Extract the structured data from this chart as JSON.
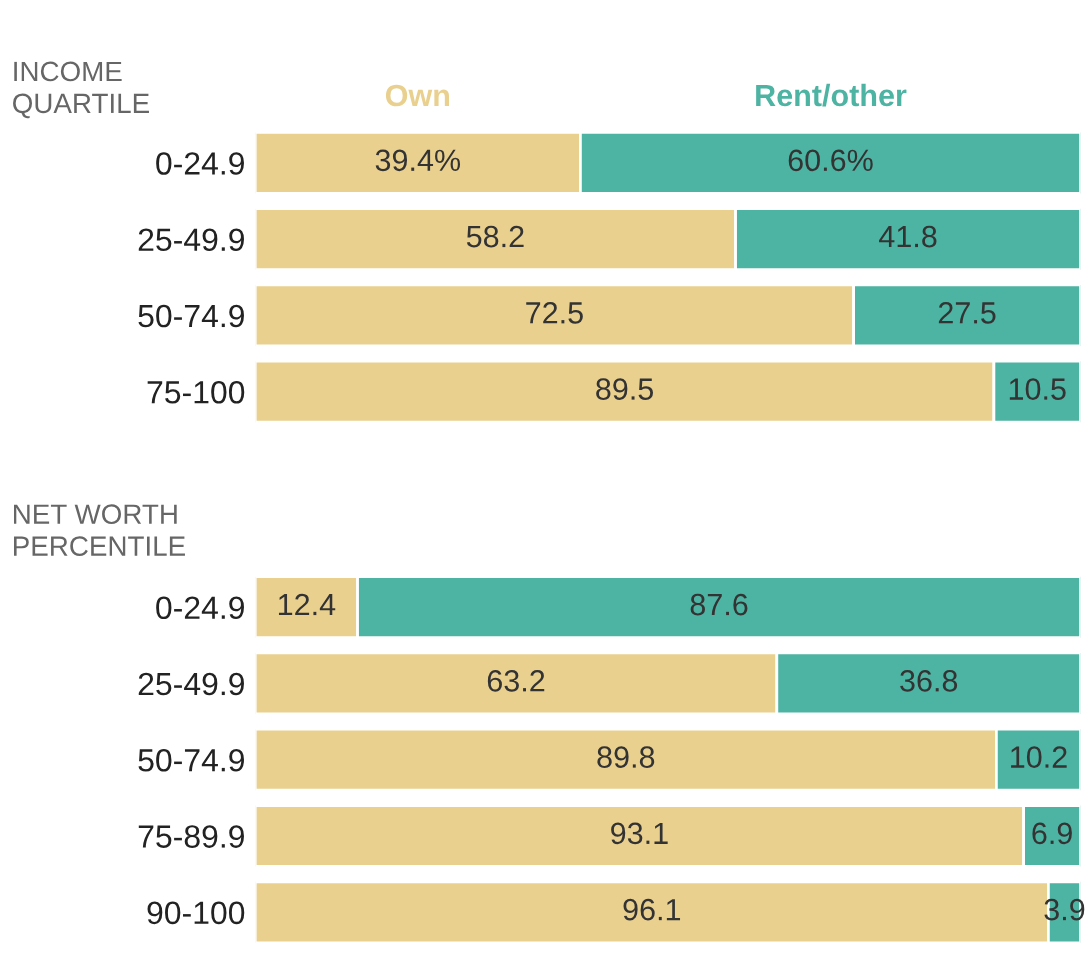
{
  "chart_data": [
    {
      "type": "bar",
      "orientation": "horizontal",
      "stacked": true,
      "ylabel": "INCOME\nQUARTILE",
      "categories": [
        "0-24.9",
        "25-49.9",
        "50-74.9",
        "75-100"
      ],
      "xlim": [
        0,
        100
      ],
      "tick_labels": "y",
      "legend": "top",
      "grid": false,
      "series": [
        {
          "name": "Own",
          "color": "#e9d08f",
          "values": [
            39.4,
            58.2,
            72.5,
            89.5
          ],
          "value_labels": [
            "39.4%",
            "58.2",
            "72.5",
            "89.5"
          ]
        },
        {
          "name": "Rent/other",
          "color": "#4db3a2",
          "values": [
            60.6,
            41.8,
            27.5,
            10.5
          ],
          "value_labels": [
            "60.6%",
            "41.8",
            "27.5",
            "10.5"
          ]
        }
      ]
    },
    {
      "type": "bar",
      "orientation": "horizontal",
      "stacked": true,
      "ylabel": "NET WORTH\nPERCENTILE",
      "categories": [
        "0-24.9",
        "25-49.9",
        "50-74.9",
        "75-89.9",
        "90-100"
      ],
      "xlim": [
        0,
        100
      ],
      "tick_labels": "y",
      "grid": false,
      "data_labels": true,
      "series": [
        {
          "color": "#e9d08f",
          "values": [
            12.4,
            63.2,
            89.8,
            93.1,
            96.1
          ]
        },
        {
          "color": "#4db3a2",
          "values": [
            87.6,
            36.8,
            10.2,
            6.9,
            3.9
          ]
        }
      ]
    }
  ]
}
